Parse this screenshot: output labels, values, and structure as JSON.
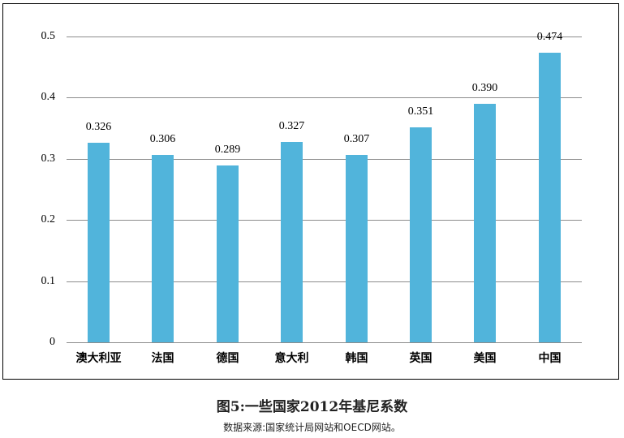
{
  "chart_data": {
    "type": "bar",
    "title": "图5:一些国家2012年基尼系数",
    "subtitle": "数据来源:国家统计局网站和OECD网站。",
    "xlabel": "",
    "ylabel": "",
    "categories": [
      "澳大利亚",
      "法国",
      "德国",
      "意大利",
      "韩国",
      "英国",
      "美国",
      "中国"
    ],
    "values": [
      0.326,
      0.306,
      0.289,
      0.327,
      0.307,
      0.351,
      0.39,
      0.474
    ],
    "value_labels": [
      "0.326",
      "0.306",
      "0.289",
      "0.327",
      "0.307",
      "0.351",
      "0.390",
      "0.474"
    ],
    "ylim": [
      0,
      0.5
    ],
    "yticks": [
      "0",
      "0.1",
      "0.2",
      "0.3",
      "0.4",
      "0.5"
    ],
    "grid": true,
    "legend": null,
    "bar_color": "#51b4db"
  }
}
